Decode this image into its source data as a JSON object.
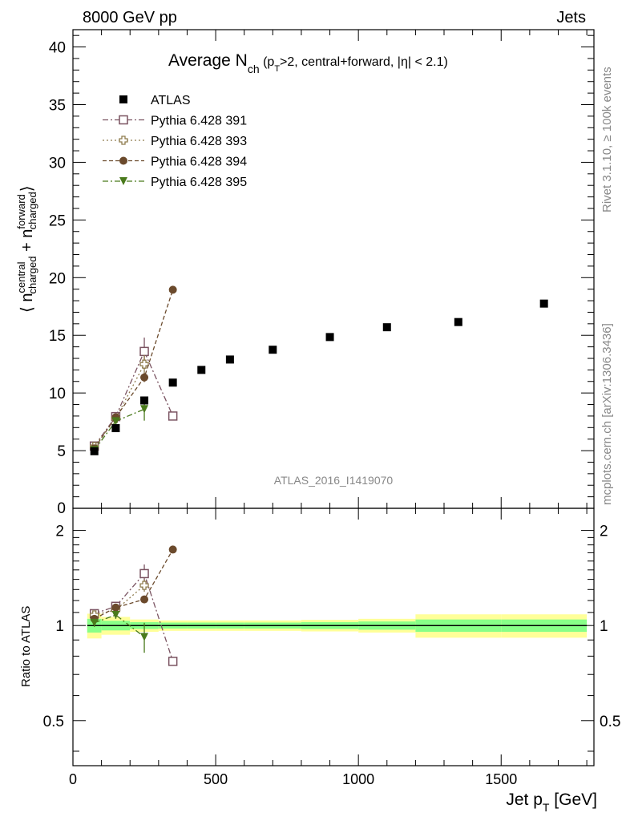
{
  "header": {
    "left": "8000 GeV pp",
    "right": "Jets"
  },
  "title": {
    "main": "Average N",
    "main_sub": "ch",
    "detail_a": " (p",
    "detail_sub": "T",
    "detail_b": ">2, central+forward, |η| < 2.1)"
  },
  "side_labels": {
    "rivet": "Rivet 3.1.10, ≥ 100k events",
    "mcplots": "mcplots.cern.ch [arXiv:1306.3436]"
  },
  "watermark": "ATLAS_2016_I1419070",
  "ylabel_main": {
    "a": "⟨ n",
    "b": "central",
    "c": "charged",
    "d": " + n",
    "e": "forward",
    "f": "charged",
    "g": "⟩"
  },
  "ylabel_ratio": "Ratio to ATLAS",
  "xlabel": {
    "a": "Jet p",
    "sub": "T",
    "b": " [GeV]"
  },
  "chart_data": [
    {
      "type": "scatter",
      "panel": "main",
      "xlim": [
        0,
        1825
      ],
      "ylim": [
        0,
        41.5
      ],
      "yticks": [
        5,
        10,
        15,
        20,
        25,
        30,
        35,
        40
      ],
      "ytick_labels": [
        "5",
        "10",
        "15",
        "20",
        "25",
        "30",
        "35",
        "40"
      ],
      "ytick_zero_label": "0",
      "legend_position": "top-left",
      "series": [
        {
          "name": "ATLAS",
          "color": "#000000",
          "marker": "filled-square",
          "x": [
            75,
            150,
            250,
            350,
            450,
            550,
            700,
            900,
            1100,
            1350,
            1650
          ],
          "y": [
            4.95,
            6.95,
            9.35,
            10.9,
            12.0,
            12.9,
            13.75,
            14.85,
            15.7,
            16.15,
            17.75
          ]
        },
        {
          "name": "Pythia 6.428 391",
          "color": "#7a5361",
          "marker": "open-square",
          "line": "dash-dot",
          "x": [
            75,
            150,
            250,
            350
          ],
          "y": [
            5.4,
            7.95,
            13.6,
            8.0
          ],
          "yerr": [
            0.2,
            0.2,
            1.2,
            0.2
          ]
        },
        {
          "name": "Pythia 6.428 393",
          "color": "#8f7c4e",
          "marker": "open-cross",
          "line": "dotted",
          "x": [
            75,
            150,
            250
          ],
          "y": [
            5.35,
            7.8,
            12.5
          ],
          "yerr": [
            0.2,
            0.2,
            0.8
          ]
        },
        {
          "name": "Pythia 6.428 394",
          "color": "#6b4a2c",
          "marker": "filled-circle",
          "line": "dashed",
          "x": [
            75,
            150,
            250,
            350
          ],
          "y": [
            5.2,
            7.9,
            11.35,
            18.95
          ],
          "yerr": [
            0.15,
            0.15,
            0.4,
            0.2
          ]
        },
        {
          "name": "Pythia 6.428 395",
          "color": "#4a7a1c",
          "marker": "filled-triangle-down",
          "line": "dash-dot",
          "x": [
            75,
            150,
            250
          ],
          "y": [
            5.05,
            7.55,
            8.6
          ],
          "yerr": [
            0.2,
            0.2,
            1.0
          ]
        }
      ]
    },
    {
      "type": "scatter",
      "panel": "ratio",
      "xlim": [
        0,
        1825
      ],
      "ylim": [
        0.36,
        2.35
      ],
      "log_scale_y": true,
      "yticks": [
        0.5,
        1,
        2
      ],
      "ytick_labels": [
        "0.5",
        "1",
        "2"
      ],
      "xticks": [
        0,
        500,
        1000,
        1500
      ],
      "xtick_labels": [
        "0",
        "500",
        "1000",
        "1500"
      ],
      "reference_band": {
        "bins": [
          [
            50,
            100
          ],
          [
            100,
            200
          ],
          [
            200,
            300
          ],
          [
            300,
            400
          ],
          [
            400,
            500
          ],
          [
            500,
            600
          ],
          [
            600,
            800
          ],
          [
            800,
            1000
          ],
          [
            1000,
            1200
          ],
          [
            1200,
            1500
          ],
          [
            1500,
            1800
          ]
        ],
        "inner": [
          0.05,
          0.035,
          0.025,
          0.022,
          0.022,
          0.022,
          0.022,
          0.025,
          0.03,
          0.045,
          0.045
        ],
        "outer": [
          0.09,
          0.065,
          0.045,
          0.038,
          0.038,
          0.038,
          0.038,
          0.042,
          0.05,
          0.085,
          0.085
        ],
        "inner_color": "#88ff88",
        "outer_color": "#ffff99"
      },
      "series": [
        {
          "name": "Pythia 6.428 391",
          "color": "#7a5361",
          "marker": "open-square",
          "x": [
            75,
            150,
            250,
            350
          ],
          "y": [
            1.09,
            1.15,
            1.46,
            0.77
          ],
          "yerr": [
            0.03,
            0.03,
            0.1,
            0.02
          ]
        },
        {
          "name": "Pythia 6.428 393",
          "color": "#8f7c4e",
          "marker": "open-cross",
          "x": [
            75,
            150,
            250
          ],
          "y": [
            1.08,
            1.12,
            1.34
          ],
          "yerr": [
            0.03,
            0.03,
            0.06
          ]
        },
        {
          "name": "Pythia 6.428 394",
          "color": "#6b4a2c",
          "marker": "filled-circle",
          "x": [
            75,
            150,
            250,
            350
          ],
          "y": [
            1.05,
            1.14,
            1.21,
            1.74
          ],
          "yerr": [
            0.02,
            0.02,
            0.03,
            0.02
          ]
        },
        {
          "name": "Pythia 6.428 395",
          "color": "#4a7a1c",
          "marker": "filled-triangle-down",
          "x": [
            75,
            150,
            250
          ],
          "y": [
            1.02,
            1.08,
            0.92
          ],
          "yerr": [
            0.03,
            0.03,
            0.1
          ]
        }
      ]
    }
  ]
}
